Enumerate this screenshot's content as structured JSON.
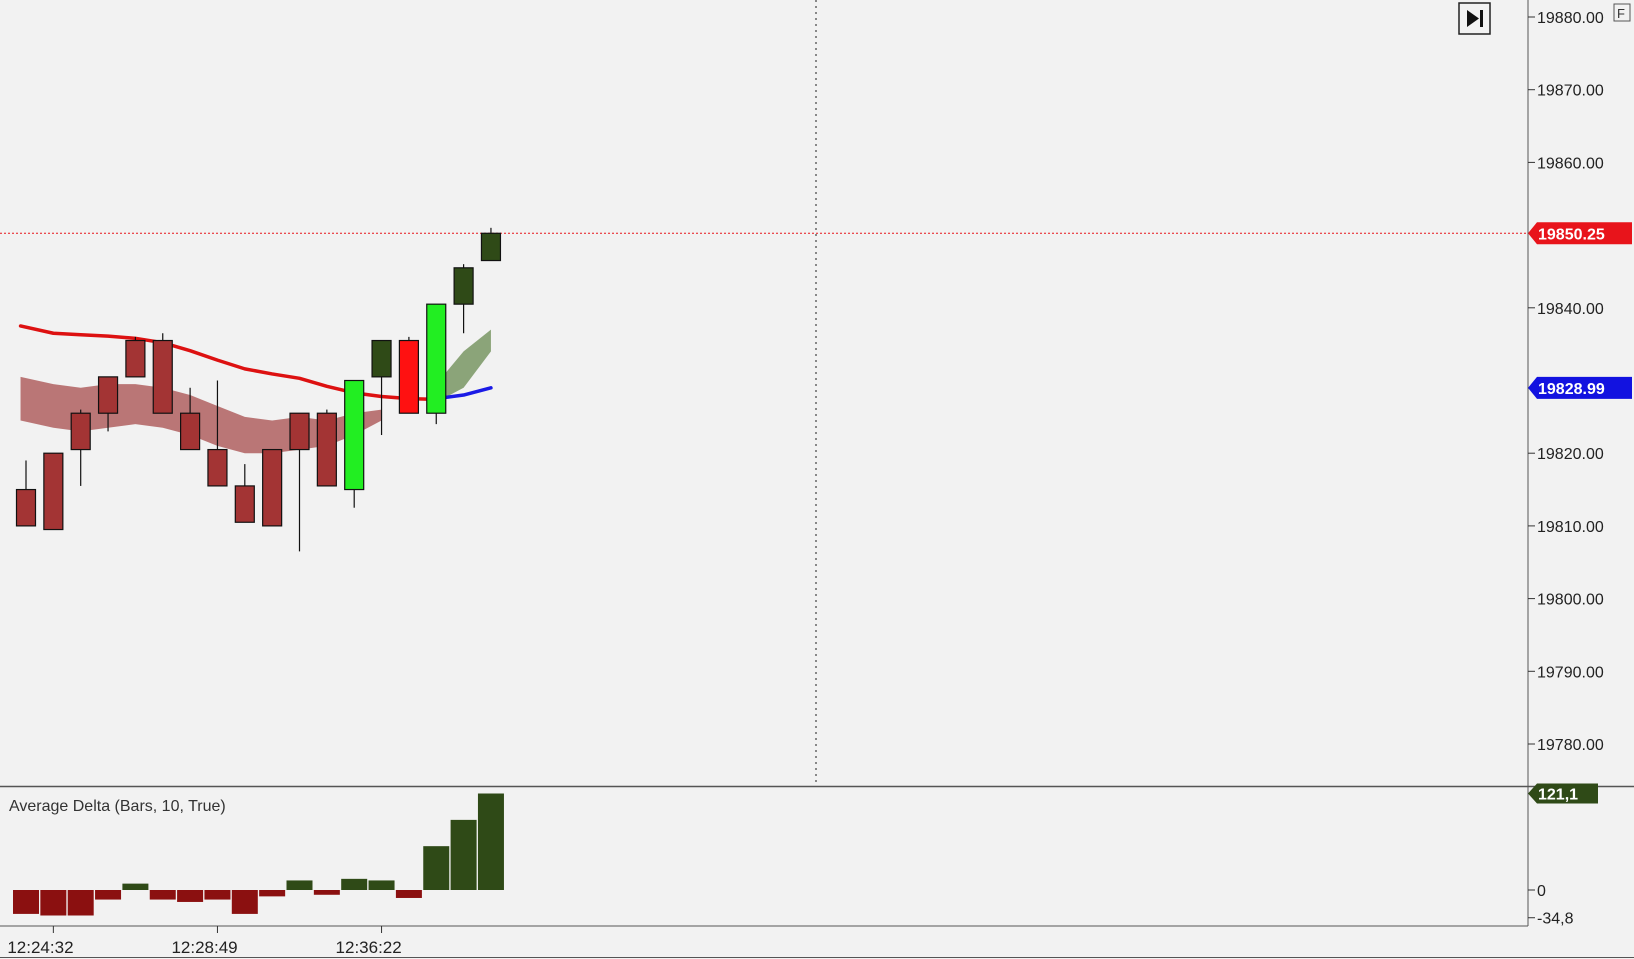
{
  "chart_data": [
    {
      "type": "candlestick",
      "panel": "price",
      "ylim": [
        19775,
        19885
      ],
      "y_ticks": [
        "19880.00",
        "19870.00",
        "19860.00",
        "19840.00",
        "19820.00",
        "19810.00",
        "19800.00",
        "19790.00",
        "19780.00"
      ],
      "y_tick_values": [
        19880,
        19870,
        19860,
        19840,
        19820,
        19810,
        19800,
        19790,
        19780
      ],
      "price_markers": [
        {
          "label": "19850.25",
          "value": 19850.25,
          "color": "#e8141b"
        },
        {
          "label": "19828.99",
          "value": 19828.99,
          "color": "#1212e0"
        }
      ],
      "candles": [
        {
          "x": 0,
          "open": 19815,
          "high": 19819,
          "low": 19810,
          "close": 19810,
          "color": "#a33434"
        },
        {
          "x": 1,
          "open": 19820,
          "high": 19820,
          "low": 19809.5,
          "close": 19809.5,
          "color": "#a33434"
        },
        {
          "x": 2,
          "open": 19820.5,
          "high": 19826,
          "low": 19815.5,
          "close": 19825.5,
          "color": "#a33434"
        },
        {
          "x": 3,
          "open": 19825.5,
          "high": 19830.5,
          "low": 19823,
          "close": 19830.5,
          "color": "#a33434"
        },
        {
          "x": 4,
          "open": 19830.5,
          "high": 19836,
          "low": 19830.5,
          "close": 19835.5,
          "color": "#a33434"
        },
        {
          "x": 5,
          "open": 19835.5,
          "high": 19836.5,
          "low": 19825.5,
          "close": 19825.5,
          "color": "#a33434"
        },
        {
          "x": 6,
          "open": 19825.5,
          "high": 19829,
          "low": 19820.5,
          "close": 19820.5,
          "color": "#a33434"
        },
        {
          "x": 7,
          "open": 19820.5,
          "high": 19830,
          "low": 19815.5,
          "close": 19815.5,
          "color": "#a33434"
        },
        {
          "x": 8,
          "open": 19815.5,
          "high": 19818.5,
          "low": 19810.5,
          "close": 19810.5,
          "color": "#a33434"
        },
        {
          "x": 9,
          "open": 19820.5,
          "high": 19820.5,
          "low": 19810,
          "close": 19810,
          "color": "#a33434"
        },
        {
          "x": 10,
          "open": 19825.5,
          "high": 19825.5,
          "low": 19806.5,
          "close": 19820.5,
          "color": "#a33434"
        },
        {
          "x": 11,
          "open": 19825.5,
          "high": 19826,
          "low": 19815.5,
          "close": 19815.5,
          "color": "#a33434"
        },
        {
          "x": 12,
          "open": 19815,
          "high": 19830,
          "low": 19812.5,
          "close": 19830,
          "color": "#22ee22"
        },
        {
          "x": 13,
          "open": 19830.5,
          "high": 19835.5,
          "low": 19822.5,
          "close": 19835.5,
          "color": "#2f4a17"
        },
        {
          "x": 14,
          "open": 19835.5,
          "high": 19836,
          "low": 19825.5,
          "close": 19825.5,
          "color": "#ff1111"
        },
        {
          "x": 15,
          "open": 19825.5,
          "high": 19840.5,
          "low": 19824,
          "close": 19840.5,
          "color": "#22ee22"
        },
        {
          "x": 16,
          "open": 19840.5,
          "high": 19846,
          "low": 19836.5,
          "close": 19845.5,
          "color": "#2f4a17"
        },
        {
          "x": 17,
          "open": 19846.5,
          "high": 19851,
          "low": 19846.5,
          "close": 19850.25,
          "color": "#2f4a17"
        }
      ],
      "ma_red": [
        {
          "x": -0.2,
          "y": 19837.5
        },
        {
          "x": 1,
          "y": 19836.5
        },
        {
          "x": 2,
          "y": 19836.3
        },
        {
          "x": 3,
          "y": 19836.1
        },
        {
          "x": 4,
          "y": 19835.8
        },
        {
          "x": 5,
          "y": 19835.2
        },
        {
          "x": 6,
          "y": 19834.1
        },
        {
          "x": 7,
          "y": 19832.8
        },
        {
          "x": 8,
          "y": 19831.6
        },
        {
          "x": 9,
          "y": 19830.9
        },
        {
          "x": 10,
          "y": 19830.3
        },
        {
          "x": 11,
          "y": 19829.2
        },
        {
          "x": 12,
          "y": 19828.3
        },
        {
          "x": 13,
          "y": 19827.8
        },
        {
          "x": 14,
          "y": 19827.5
        },
        {
          "x": 15,
          "y": 19827.4
        }
      ],
      "ma_blue": [
        {
          "x": 15,
          "y": 19827.5
        },
        {
          "x": 16,
          "y": 19828.0
        },
        {
          "x": 17,
          "y": 19828.99
        }
      ],
      "band": [
        {
          "x": -0.2,
          "upper": 19830.5,
          "lower": 19824.5
        },
        {
          "x": 1,
          "upper": 19829.5,
          "lower": 19823.5
        },
        {
          "x": 2,
          "upper": 19829,
          "lower": 19823
        },
        {
          "x": 3,
          "upper": 19829.5,
          "lower": 19823.5
        },
        {
          "x": 4,
          "upper": 19829.5,
          "lower": 19824
        },
        {
          "x": 5,
          "upper": 19829,
          "lower": 19823.5
        },
        {
          "x": 6,
          "upper": 19828,
          "lower": 19822.5
        },
        {
          "x": 7,
          "upper": 19826.5,
          "lower": 19821
        },
        {
          "x": 8,
          "upper": 19825,
          "lower": 19820
        },
        {
          "x": 9,
          "upper": 19824.5,
          "lower": 19820
        },
        {
          "x": 10,
          "upper": 19825,
          "lower": 19820.5
        },
        {
          "x": 11,
          "upper": 19824.5,
          "lower": 19821
        },
        {
          "x": 12,
          "upper": 19825.5,
          "lower": 19822.5
        },
        {
          "x": 13,
          "upper": 19826,
          "lower": 19824.5
        }
      ],
      "band_green": [
        {
          "x": 15,
          "upper": 19829.5,
          "lower": 19827
        },
        {
          "x": 16,
          "upper": 19834,
          "lower": 19829
        },
        {
          "x": 17,
          "upper": 19837,
          "lower": 19834
        }
      ],
      "colors": {
        "ma_red": "#dd1111",
        "ma_blue": "#1a1ae6",
        "band_red": "#b06060",
        "band_green": "#7f9b6c",
        "bear": "#a33434",
        "last_price_line": "#e8141b"
      }
    },
    {
      "type": "bar",
      "panel": "indicator",
      "title": "Average Delta (Bars, 10, True)",
      "ylim": [
        -34.8,
        121.1
      ],
      "y_ticks": [
        "0",
        "-34,8"
      ],
      "y_tick_values": [
        0,
        -34.8
      ],
      "value_marker": {
        "label": "121,1",
        "value": 121.1,
        "color": "#2f4a17"
      },
      "x": [
        0,
        1,
        2,
        3,
        4,
        5,
        6,
        7,
        8,
        9,
        10,
        11,
        12,
        13,
        14,
        15,
        16,
        17
      ],
      "values": [
        -30,
        -32,
        -32,
        -12,
        8,
        -12,
        -15,
        -12,
        -30,
        -8,
        12,
        -6,
        14,
        12,
        -10,
        55,
        88,
        121.1
      ],
      "colors": {
        "positive": "#2f4a17",
        "negative": "#8b1010"
      }
    }
  ],
  "time_axis": {
    "labels": [
      {
        "text": "12:24:32",
        "x": 1
      },
      {
        "text": "12:28:49",
        "x": 7
      },
      {
        "text": "12:36:22",
        "x": 13
      }
    ]
  },
  "toolbar": {
    "scroll_to_end_icon": "skip-to-end-icon",
    "f_badge": "F"
  }
}
